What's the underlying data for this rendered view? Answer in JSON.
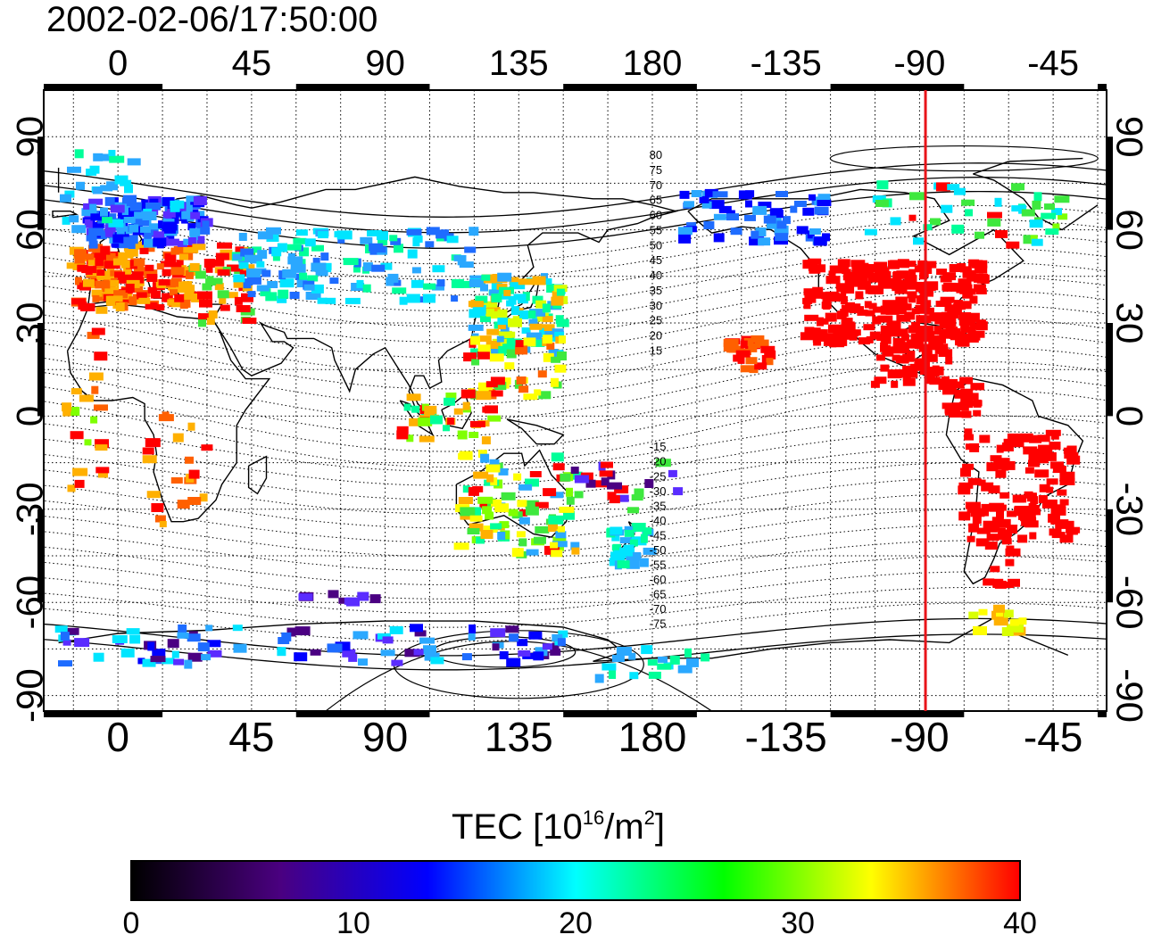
{
  "title": "2002-02-06/17:50:00",
  "map": {
    "longitude_ticks": [
      "0",
      "45",
      "90",
      "135",
      "180",
      "-135",
      "-90",
      "-45"
    ],
    "longitude_tick_values": [
      0,
      45,
      90,
      135,
      180,
      225,
      270,
      315
    ],
    "latitude_ticks": [
      "90",
      "60",
      "30",
      "0",
      "-30",
      "-60",
      "-90"
    ],
    "latitude_tick_values": [
      90,
      60,
      30,
      0,
      -30,
      -60,
      -90
    ],
    "lon_range": [
      -25,
      333
    ],
    "lat_range": [
      -95,
      105
    ],
    "magnetic_latitude_labels": [
      "80",
      "75",
      "70",
      "65",
      "60",
      "55",
      "50",
      "45",
      "40",
      "35",
      "30",
      "25",
      "20",
      "15",
      "-15",
      "-20",
      "-25",
      "-30",
      "-35",
      "-40",
      "-45",
      "-50",
      "-55",
      "-60",
      "-65",
      "-70",
      "-75"
    ],
    "meridian_line": {
      "longitude": -88,
      "color": "#e8141a"
    }
  },
  "colorbar": {
    "title_prefix": "TEC  [10",
    "title_exp": "16",
    "title_mid": "/m",
    "title_exp2": "2",
    "title_suffix": "]",
    "ticks": [
      "0",
      "10",
      "20",
      "30",
      "40"
    ],
    "tick_values": [
      0,
      10,
      20,
      30,
      40
    ],
    "range": [
      0,
      40
    ],
    "colors": [
      "#000000",
      "#4a0080",
      "#0000ff",
      "#00ffff",
      "#00ff00",
      "#ffff00",
      "#ff0000"
    ]
  },
  "tec_regions": [
    {
      "name": "north-america",
      "color": "#ff0000"
    },
    {
      "name": "south-america",
      "color": "#ff0000"
    },
    {
      "name": "europe",
      "color": "#ff3000"
    },
    {
      "name": "scandinavia",
      "color": "#1050ff"
    },
    {
      "name": "east-asia",
      "color": "#2aa8ff"
    },
    {
      "name": "australia",
      "color": "#50d050"
    },
    {
      "name": "antarctica",
      "color": "#1e6cff"
    }
  ]
}
